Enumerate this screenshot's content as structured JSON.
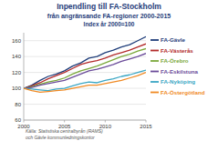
{
  "chart_data": {
    "type": "line",
    "title": "Inpendling till FA-Stockholm",
    "subtitle": "från angränsande FA-regioner 2000-2015",
    "y_label": "Index år 2000=100",
    "source": [
      "Källa: Statistiska centralbyrån (RAMS)",
      "och Gävle kommunledningskontor"
    ],
    "x": [
      2000,
      2001,
      2002,
      2003,
      2004,
      2005,
      2006,
      2007,
      2008,
      2009,
      2010,
      2011,
      2012,
      2013,
      2014,
      2015
    ],
    "xlim": [
      2000,
      2015
    ],
    "xticks": [
      2000,
      2005,
      2010,
      2015
    ],
    "ylim": [
      60,
      170
    ],
    "yticks": [
      60,
      80,
      100,
      120,
      140,
      160
    ],
    "grid": true,
    "legend": "right",
    "series": [
      {
        "name": "FA-Gävle",
        "color": "#1f3d7a",
        "values": [
          100,
          104,
          110,
          115,
          118,
          122,
          128,
          132,
          138,
          140,
          145,
          148,
          152,
          155,
          160,
          165
        ]
      },
      {
        "name": "FA-Västerås",
        "color": "#b22a2a",
        "values": [
          100,
          103,
          107,
          112,
          116,
          120,
          125,
          130,
          133,
          135,
          138,
          142,
          145,
          148,
          152,
          156
        ]
      },
      {
        "name": "FA-Örebro",
        "color": "#7aa83a",
        "values": [
          100,
          102,
          105,
          108,
          110,
          113,
          118,
          122,
          125,
          128,
          132,
          136,
          140,
          143,
          147,
          150
        ]
      },
      {
        "name": "FA-Eskilstuna",
        "color": "#6b4c9a",
        "values": [
          100,
          101,
          104,
          106,
          108,
          110,
          114,
          118,
          122,
          124,
          127,
          130,
          134,
          137,
          140,
          144
        ]
      },
      {
        "name": "FA-Nyköping",
        "color": "#3aa6c4",
        "values": [
          100,
          99,
          98,
          97,
          99,
          100,
          103,
          106,
          108,
          107,
          110,
          112,
          115,
          117,
          120,
          123
        ]
      },
      {
        "name": "FA-Östergötland",
        "color": "#f08a24",
        "values": [
          100,
          97,
          95,
          96,
          97,
          98,
          100,
          102,
          104,
          104,
          106,
          108,
          110,
          113,
          116,
          120
        ]
      }
    ]
  }
}
